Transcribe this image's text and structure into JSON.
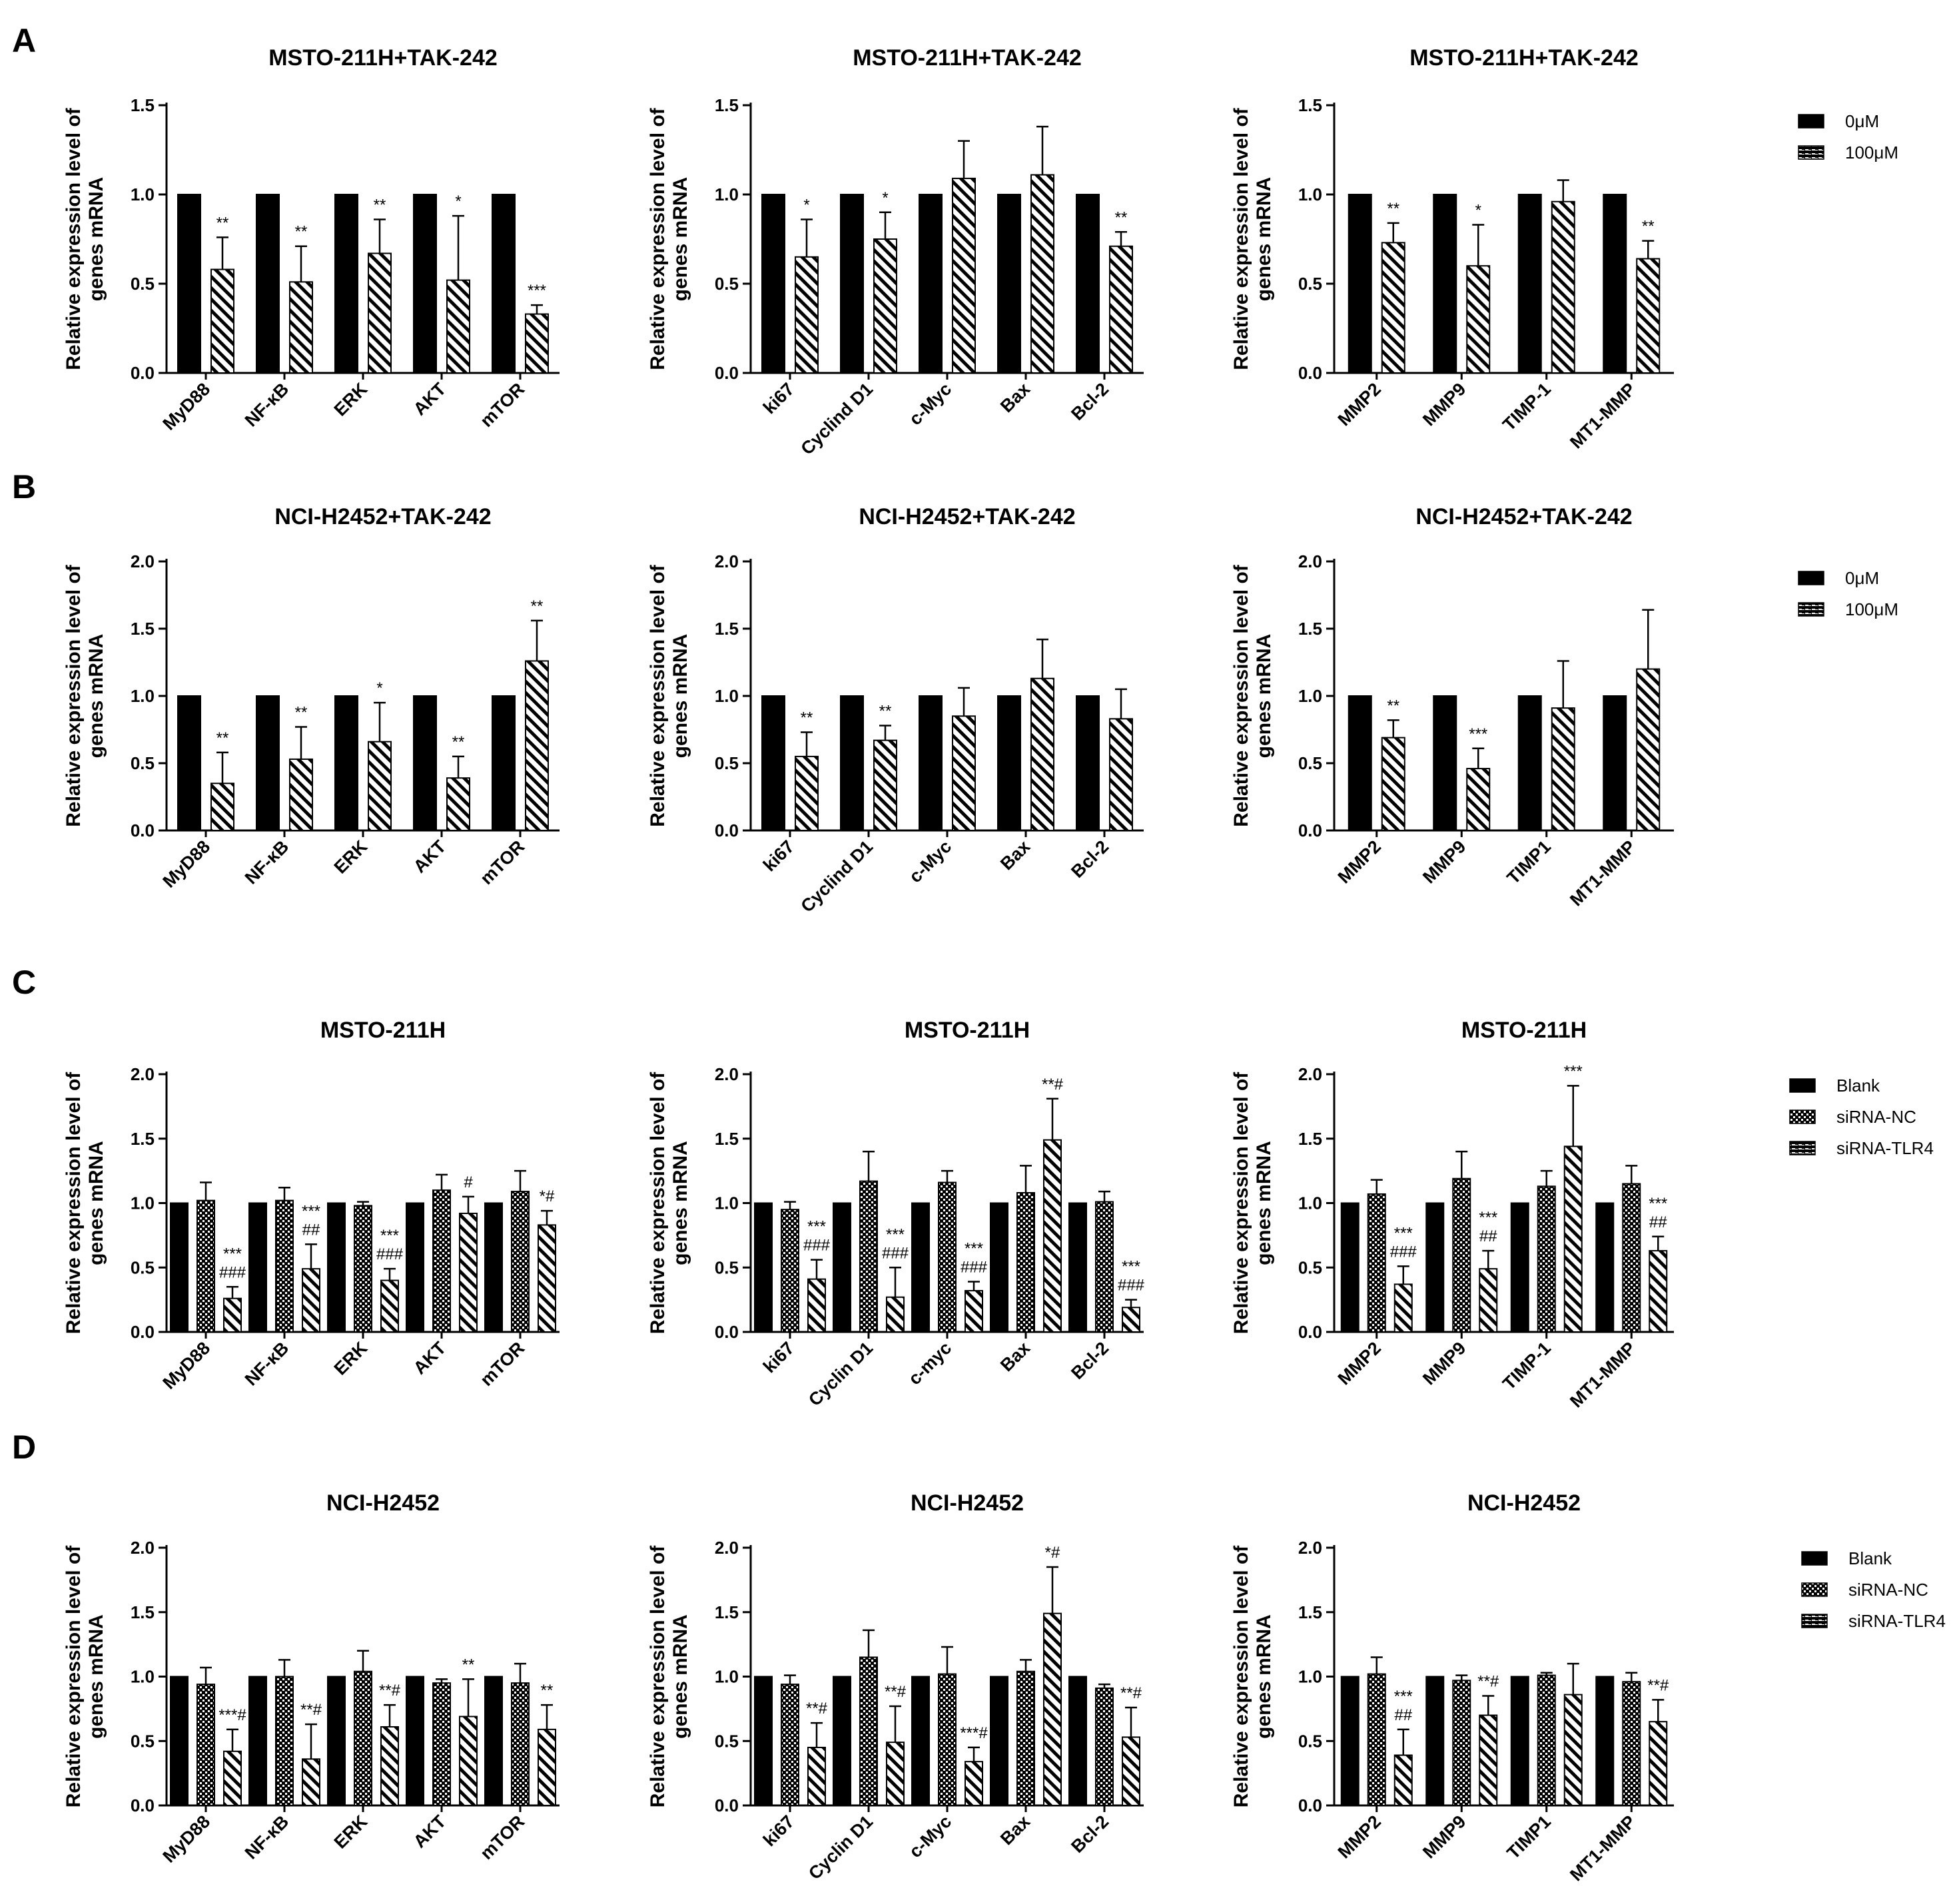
{
  "colors": {
    "bar_fill": "#000000",
    "hatch_background": "#ffffff",
    "background": "#ffffff",
    "axis": "#000000"
  },
  "panel_letters": [
    "A",
    "B",
    "C",
    "D"
  ],
  "legends": [
    {
      "row": 0,
      "entries": [
        {
          "label": "0μM",
          "style": "solid"
        },
        {
          "label": "100μM",
          "style": "hatch"
        }
      ]
    },
    {
      "row": 1,
      "entries": [
        {
          "label": "0μM",
          "style": "solid"
        },
        {
          "label": "100μM",
          "style": "hatch"
        }
      ]
    },
    {
      "row": 2,
      "entries": [
        {
          "label": "Blank",
          "style": "solid"
        },
        {
          "label": "siRNA-NC",
          "style": "checker"
        },
        {
          "label": "siRNA-TLR4",
          "style": "hatch"
        }
      ]
    },
    {
      "row": 3,
      "entries": [
        {
          "label": "Blank",
          "style": "solid"
        },
        {
          "label": "siRNA-NC",
          "style": "checker"
        },
        {
          "label": "siRNA-TLR4",
          "style": "hatch"
        }
      ]
    }
  ],
  "chart_data": [
    {
      "row": 0,
      "col": 0,
      "type": "bar",
      "title": "MSTO-211H+TAK-242",
      "ylabel": "Relative expression level of genes mRNA",
      "ylim": [
        0,
        1.5
      ],
      "yticks": [
        "0.0",
        "0.5",
        "1.0",
        "1.5"
      ],
      "categories": [
        "MyD88",
        "NF-κB",
        "ERK",
        "AKT",
        "mTOR"
      ],
      "series": [
        {
          "name": "0μM",
          "style": "solid",
          "values": [
            1.0,
            1.0,
            1.0,
            1.0,
            1.0
          ]
        },
        {
          "name": "100μM",
          "style": "hatch",
          "values": [
            0.58,
            0.51,
            0.67,
            0.52,
            0.33
          ],
          "errors": [
            0.18,
            0.2,
            0.19,
            0.36,
            0.05
          ]
        }
      ],
      "annotations": [
        {
          "category": 0,
          "series": 1,
          "text": "**"
        },
        {
          "category": 1,
          "series": 1,
          "text": "**"
        },
        {
          "category": 2,
          "series": 1,
          "text": "**"
        },
        {
          "category": 3,
          "series": 1,
          "text": "*"
        },
        {
          "category": 4,
          "series": 1,
          "text": "***"
        }
      ]
    },
    {
      "row": 0,
      "col": 1,
      "type": "bar",
      "title": "MSTO-211H+TAK-242",
      "ylabel": "Relative expression level of genes mRNA",
      "ylim": [
        0,
        1.5
      ],
      "yticks": [
        "0.0",
        "0.5",
        "1.0",
        "1.5"
      ],
      "categories": [
        "ki67",
        "Cyclind D1",
        "c-Myc",
        "Bax",
        "Bcl-2"
      ],
      "series": [
        {
          "name": "0μM",
          "style": "solid",
          "values": [
            1.0,
            1.0,
            1.0,
            1.0,
            1.0
          ]
        },
        {
          "name": "100μM",
          "style": "hatch",
          "values": [
            0.65,
            0.75,
            1.09,
            1.11,
            0.71
          ],
          "errors": [
            0.21,
            0.15,
            0.21,
            0.27,
            0.08
          ]
        }
      ],
      "annotations": [
        {
          "category": 0,
          "series": 1,
          "text": "*"
        },
        {
          "category": 1,
          "series": 1,
          "text": "*"
        },
        {
          "category": 4,
          "series": 1,
          "text": "**"
        }
      ]
    },
    {
      "row": 0,
      "col": 2,
      "type": "bar",
      "title": "MSTO-211H+TAK-242",
      "ylabel": "Relative expression level of genes mRNA",
      "ylim": [
        0,
        1.5
      ],
      "yticks": [
        "0.0",
        "0.5",
        "1.0",
        "1.5"
      ],
      "categories": [
        "MMP2",
        "MMP9",
        "TIMP-1",
        "MT1-MMP"
      ],
      "series": [
        {
          "name": "0μM",
          "style": "solid",
          "values": [
            1.0,
            1.0,
            1.0,
            1.0
          ]
        },
        {
          "name": "100μM",
          "style": "hatch",
          "values": [
            0.73,
            0.6,
            0.96,
            0.64
          ],
          "errors": [
            0.11,
            0.23,
            0.12,
            0.1
          ]
        }
      ],
      "annotations": [
        {
          "category": 0,
          "series": 1,
          "text": "**"
        },
        {
          "category": 1,
          "series": 1,
          "text": "*"
        },
        {
          "category": 3,
          "series": 1,
          "text": "**"
        }
      ]
    },
    {
      "row": 1,
      "col": 0,
      "type": "bar",
      "title": "NCI-H2452+TAK-242",
      "ylabel": "Relative expression level of genes mRNA",
      "ylim": [
        0,
        2.0
      ],
      "yticks": [
        "0.0",
        "0.5",
        "1.0",
        "1.5",
        "2.0"
      ],
      "categories": [
        "MyD88",
        "NF-κB",
        "ERK",
        "AKT",
        "mTOR"
      ],
      "series": [
        {
          "name": "0μM",
          "style": "solid",
          "values": [
            1.0,
            1.0,
            1.0,
            1.0,
            1.0
          ]
        },
        {
          "name": "100μM",
          "style": "hatch",
          "values": [
            0.35,
            0.53,
            0.66,
            0.39,
            1.26
          ],
          "errors": [
            0.23,
            0.24,
            0.29,
            0.16,
            0.3
          ]
        }
      ],
      "annotations": [
        {
          "category": 0,
          "series": 1,
          "text": "**"
        },
        {
          "category": 1,
          "series": 1,
          "text": "**"
        },
        {
          "category": 2,
          "series": 1,
          "text": "*"
        },
        {
          "category": 3,
          "series": 1,
          "text": "**"
        },
        {
          "category": 4,
          "series": 1,
          "text": "**"
        }
      ]
    },
    {
      "row": 1,
      "col": 1,
      "type": "bar",
      "title": "NCI-H2452+TAK-242",
      "ylabel": "Relative expression level of genes mRNA",
      "ylim": [
        0,
        2.0
      ],
      "yticks": [
        "0.0",
        "0.5",
        "1.0",
        "1.5",
        "2.0"
      ],
      "categories": [
        "ki67",
        "Cyclind D1",
        "c-Myc",
        "Bax",
        "Bcl-2"
      ],
      "series": [
        {
          "name": "0μM",
          "style": "solid",
          "values": [
            1.0,
            1.0,
            1.0,
            1.0,
            1.0
          ]
        },
        {
          "name": "100μM",
          "style": "hatch",
          "values": [
            0.55,
            0.67,
            0.85,
            1.13,
            0.83
          ],
          "errors": [
            0.18,
            0.11,
            0.21,
            0.29,
            0.22
          ]
        }
      ],
      "annotations": [
        {
          "category": 0,
          "series": 1,
          "text": "**"
        },
        {
          "category": 1,
          "series": 1,
          "text": "**"
        }
      ]
    },
    {
      "row": 1,
      "col": 2,
      "type": "bar",
      "title": "NCI-H2452+TAK-242",
      "ylabel": "Relative expression level of genes mRNA",
      "ylim": [
        0,
        2.0
      ],
      "yticks": [
        "0.0",
        "0.5",
        "1.0",
        "1.5",
        "2.0"
      ],
      "categories": [
        "MMP2",
        "MMP9",
        "TIMP1",
        "MT1-MMP"
      ],
      "series": [
        {
          "name": "0μM",
          "style": "solid",
          "values": [
            1.0,
            1.0,
            1.0,
            1.0
          ]
        },
        {
          "name": "100μM",
          "style": "hatch",
          "values": [
            0.69,
            0.46,
            0.91,
            1.2
          ],
          "errors": [
            0.13,
            0.15,
            0.35,
            0.44
          ]
        }
      ],
      "annotations": [
        {
          "category": 0,
          "series": 1,
          "text": "**"
        },
        {
          "category": 1,
          "series": 1,
          "text": "***"
        }
      ]
    },
    {
      "row": 2,
      "col": 0,
      "type": "bar",
      "title": "MSTO-211H",
      "ylabel": "Relative expression level of genes mRNA",
      "ylim": [
        0,
        2.0
      ],
      "yticks": [
        "0.0",
        "0.5",
        "1.0",
        "1.5",
        "2.0"
      ],
      "categories": [
        "MyD88",
        "NF-κB",
        "ERK",
        "AKT",
        "mTOR"
      ],
      "series": [
        {
          "name": "Blank",
          "style": "solid",
          "values": [
            1.0,
            1.0,
            1.0,
            1.0,
            1.0
          ]
        },
        {
          "name": "siRNA-NC",
          "style": "checker",
          "values": [
            1.02,
            1.02,
            0.98,
            1.1,
            1.09
          ],
          "errors": [
            0.14,
            0.1,
            0.03,
            0.12,
            0.16
          ]
        },
        {
          "name": "siRNA-TLR4",
          "style": "hatch",
          "values": [
            0.26,
            0.49,
            0.4,
            0.92,
            0.83
          ],
          "errors": [
            0.09,
            0.19,
            0.09,
            0.13,
            0.11
          ]
        }
      ],
      "annotations": [
        {
          "category": 0,
          "series": 2,
          "text": "***\n###"
        },
        {
          "category": 1,
          "series": 2,
          "text": "***\n##"
        },
        {
          "category": 2,
          "series": 2,
          "text": "***\n###"
        },
        {
          "category": 3,
          "series": 2,
          "text": "#"
        },
        {
          "category": 4,
          "series": 2,
          "text": "*#"
        }
      ]
    },
    {
      "row": 2,
      "col": 1,
      "type": "bar",
      "title": "MSTO-211H",
      "ylabel": "Relative expression level of genes mRNA",
      "ylim": [
        0,
        2.0
      ],
      "yticks": [
        "0.0",
        "0.5",
        "1.0",
        "1.5",
        "2.0"
      ],
      "categories": [
        "ki67",
        "Cyclin D1",
        "c-myc",
        "Bax",
        "Bcl-2"
      ],
      "series": [
        {
          "name": "Blank",
          "style": "solid",
          "values": [
            1.0,
            1.0,
            1.0,
            1.0,
            1.0
          ]
        },
        {
          "name": "siRNA-NC",
          "style": "checker",
          "values": [
            0.95,
            1.17,
            1.16,
            1.08,
            1.01
          ],
          "errors": [
            0.06,
            0.23,
            0.09,
            0.21,
            0.08
          ]
        },
        {
          "name": "siRNA-TLR4",
          "style": "hatch",
          "values": [
            0.41,
            0.27,
            0.32,
            1.49,
            0.19
          ],
          "errors": [
            0.15,
            0.23,
            0.07,
            0.32,
            0.06
          ]
        }
      ],
      "annotations": [
        {
          "category": 0,
          "series": 2,
          "text": "***\n###"
        },
        {
          "category": 1,
          "series": 2,
          "text": "***\n###"
        },
        {
          "category": 2,
          "series": 2,
          "text": "***\n###"
        },
        {
          "category": 3,
          "series": 2,
          "text": "**#"
        },
        {
          "category": 4,
          "series": 2,
          "text": "***\n###"
        }
      ]
    },
    {
      "row": 2,
      "col": 2,
      "type": "bar",
      "title": "MSTO-211H",
      "ylabel": "Relative expression level of genes mRNA",
      "ylim": [
        0,
        2.0
      ],
      "yticks": [
        "0.0",
        "0.5",
        "1.0",
        "1.5",
        "2.0"
      ],
      "categories": [
        "MMP2",
        "MMP9",
        "TIMP-1",
        "MT1-MMP"
      ],
      "series": [
        {
          "name": "Blank",
          "style": "solid",
          "values": [
            1.0,
            1.0,
            1.0,
            1.0
          ]
        },
        {
          "name": "siRNA-NC",
          "style": "checker",
          "values": [
            1.07,
            1.19,
            1.13,
            1.15
          ],
          "errors": [
            0.11,
            0.21,
            0.12,
            0.14
          ]
        },
        {
          "name": "siRNA-TLR4",
          "style": "hatch",
          "values": [
            0.37,
            0.49,
            1.44,
            0.63
          ],
          "errors": [
            0.14,
            0.14,
            0.47,
            0.11
          ]
        }
      ],
      "annotations": [
        {
          "category": 0,
          "series": 2,
          "text": "***\n###"
        },
        {
          "category": 1,
          "series": 2,
          "text": "***\n##"
        },
        {
          "category": 2,
          "series": 2,
          "text": "***"
        },
        {
          "category": 3,
          "series": 2,
          "text": "***\n##"
        }
      ]
    },
    {
      "row": 3,
      "col": 0,
      "type": "bar",
      "title": "NCI-H2452",
      "ylabel": "Relative expression level of genes mRNA",
      "ylim": [
        0,
        2.0
      ],
      "yticks": [
        "0.0",
        "0.5",
        "1.0",
        "1.5",
        "2.0"
      ],
      "categories": [
        "MyD88",
        "NF-κB",
        "ERK",
        "AKT",
        "mTOR"
      ],
      "series": [
        {
          "name": "Blank",
          "style": "solid",
          "values": [
            1.0,
            1.0,
            1.0,
            1.0,
            1.0
          ]
        },
        {
          "name": "siRNA-NC",
          "style": "checker",
          "values": [
            0.94,
            1.0,
            1.04,
            0.95,
            0.95
          ],
          "errors": [
            0.13,
            0.13,
            0.16,
            0.03,
            0.15
          ]
        },
        {
          "name": "siRNA-TLR4",
          "style": "hatch",
          "values": [
            0.42,
            0.36,
            0.61,
            0.69,
            0.59
          ],
          "errors": [
            0.17,
            0.27,
            0.17,
            0.29,
            0.19
          ]
        }
      ],
      "annotations": [
        {
          "category": 0,
          "series": 2,
          "text": "***#"
        },
        {
          "category": 1,
          "series": 2,
          "text": "**#"
        },
        {
          "category": 2,
          "series": 2,
          "text": "**#"
        },
        {
          "category": 3,
          "series": 2,
          "text": "**"
        },
        {
          "category": 4,
          "series": 2,
          "text": "**"
        }
      ]
    },
    {
      "row": 3,
      "col": 1,
      "type": "bar",
      "title": "NCI-H2452",
      "ylabel": "Relative expression level of genes mRNA",
      "ylim": [
        0,
        2.0
      ],
      "yticks": [
        "0.0",
        "0.5",
        "1.0",
        "1.5",
        "2.0"
      ],
      "categories": [
        "ki67",
        "Cyclin D1",
        "c-Myc",
        "Bax",
        "Bcl-2"
      ],
      "series": [
        {
          "name": "Blank",
          "style": "solid",
          "values": [
            1.0,
            1.0,
            1.0,
            1.0,
            1.0
          ]
        },
        {
          "name": "siRNA-NC",
          "style": "checker",
          "values": [
            0.94,
            1.15,
            1.02,
            1.04,
            0.91
          ],
          "errors": [
            0.07,
            0.21,
            0.21,
            0.09,
            0.03
          ]
        },
        {
          "name": "siRNA-TLR4",
          "style": "hatch",
          "values": [
            0.45,
            0.49,
            0.34,
            1.49,
            0.53
          ],
          "errors": [
            0.19,
            0.28,
            0.11,
            0.36,
            0.23
          ]
        }
      ],
      "annotations": [
        {
          "category": 0,
          "series": 2,
          "text": "**#"
        },
        {
          "category": 1,
          "series": 2,
          "text": "**#"
        },
        {
          "category": 2,
          "series": 2,
          "text": "***#"
        },
        {
          "category": 3,
          "series": 2,
          "text": "*#"
        },
        {
          "category": 4,
          "series": 2,
          "text": "**#"
        }
      ]
    },
    {
      "row": 3,
      "col": 2,
      "type": "bar",
      "title": "NCI-H2452",
      "ylabel": "Relative expression level of genes mRNA",
      "ylim": [
        0,
        2.0
      ],
      "yticks": [
        "0.0",
        "0.5",
        "1.0",
        "1.5",
        "2.0"
      ],
      "categories": [
        "MMP2",
        "MMP9",
        "TIMP1",
        "MT1-MMP"
      ],
      "series": [
        {
          "name": "Blank",
          "style": "solid",
          "values": [
            1.0,
            1.0,
            1.0,
            1.0
          ]
        },
        {
          "name": "siRNA-NC",
          "style": "checker",
          "values": [
            1.02,
            0.97,
            1.01,
            0.96
          ],
          "errors": [
            0.13,
            0.04,
            0.02,
            0.07
          ]
        },
        {
          "name": "siRNA-TLR4",
          "style": "hatch",
          "values": [
            0.39,
            0.7,
            0.86,
            0.65
          ],
          "errors": [
            0.2,
            0.15,
            0.24,
            0.17
          ]
        }
      ],
      "annotations": [
        {
          "category": 0,
          "series": 2,
          "text": "***\n##"
        },
        {
          "category": 1,
          "series": 2,
          "text": "**#"
        },
        {
          "category": 3,
          "series": 2,
          "text": "**#"
        }
      ]
    }
  ]
}
